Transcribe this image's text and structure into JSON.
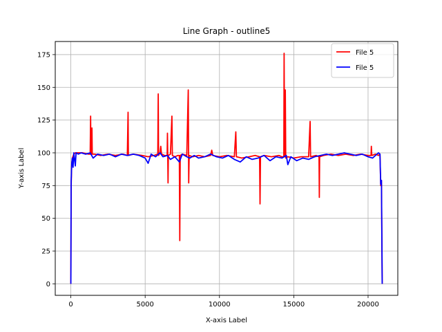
{
  "chart_data": {
    "type": "line",
    "title": "Line Graph - outline5",
    "xlabel": "X-axis Label",
    "ylabel": "Y-axis Label",
    "xlim": [
      -1050,
      22000
    ],
    "ylim": [
      -8.8,
      185
    ],
    "xticks": [
      0,
      5000,
      10000,
      15000,
      20000
    ],
    "yticks": [
      0,
      25,
      50,
      75,
      100,
      125,
      150,
      175
    ],
    "grid": true,
    "legend_position": "top-right",
    "series": [
      {
        "name": "File 5",
        "color": "#ff0000",
        "points": [
          [
            0,
            0
          ],
          [
            20,
            75
          ],
          [
            60,
            92
          ],
          [
            100,
            96
          ],
          [
            200,
            99
          ],
          [
            300,
            100
          ],
          [
            500,
            100
          ],
          [
            800,
            100
          ],
          [
            1200,
            99
          ],
          [
            1300,
            99
          ],
          [
            1330,
            128
          ],
          [
            1350,
            99
          ],
          [
            1400,
            99
          ],
          [
            1420,
            119
          ],
          [
            1440,
            99
          ],
          [
            1600,
            99
          ],
          [
            2000,
            98
          ],
          [
            2500,
            99
          ],
          [
            3000,
            98
          ],
          [
            3500,
            99
          ],
          [
            3800,
            98
          ],
          [
            3850,
            131
          ],
          [
            3870,
            98
          ],
          [
            4200,
            99
          ],
          [
            4800,
            98
          ],
          [
            5200,
            97
          ],
          [
            5600,
            98
          ],
          [
            5850,
            99
          ],
          [
            5880,
            145
          ],
          [
            5900,
            98
          ],
          [
            6000,
            100
          ],
          [
            6050,
            105
          ],
          [
            6100,
            99
          ],
          [
            6300,
            98
          ],
          [
            6480,
            98
          ],
          [
            6500,
            115
          ],
          [
            6520,
            98
          ],
          [
            6540,
            77
          ],
          [
            6560,
            98
          ],
          [
            6700,
            99
          ],
          [
            6800,
            128
          ],
          [
            6830,
            98
          ],
          [
            7000,
            97
          ],
          [
            7200,
            98
          ],
          [
            7300,
            98
          ],
          [
            7330,
            33
          ],
          [
            7360,
            98
          ],
          [
            7500,
            99
          ],
          [
            7800,
            98
          ],
          [
            7900,
            148
          ],
          [
            7930,
            77
          ],
          [
            7960,
            98
          ],
          [
            8200,
            97
          ],
          [
            8600,
            98
          ],
          [
            9000,
            97
          ],
          [
            9400,
            98
          ],
          [
            9480,
            102
          ],
          [
            9550,
            98
          ],
          [
            10000,
            97
          ],
          [
            10500,
            98
          ],
          [
            11000,
            97
          ],
          [
            11100,
            116
          ],
          [
            11140,
            97
          ],
          [
            11500,
            96
          ],
          [
            12000,
            97
          ],
          [
            12400,
            98
          ],
          [
            12700,
            97
          ],
          [
            12730,
            61
          ],
          [
            12760,
            97
          ],
          [
            13000,
            98
          ],
          [
            13500,
            97
          ],
          [
            14000,
            98
          ],
          [
            14200,
            97
          ],
          [
            14330,
            97
          ],
          [
            14350,
            176
          ],
          [
            14380,
            97
          ],
          [
            14400,
            97
          ],
          [
            14430,
            148
          ],
          [
            14460,
            96
          ],
          [
            14600,
            97
          ],
          [
            15000,
            96
          ],
          [
            15500,
            97
          ],
          [
            16000,
            97
          ],
          [
            16100,
            124
          ],
          [
            16130,
            97
          ],
          [
            16500,
            98
          ],
          [
            16700,
            97
          ],
          [
            16720,
            66
          ],
          [
            16740,
            97
          ],
          [
            17000,
            98
          ],
          [
            17500,
            99
          ],
          [
            18000,
            98
          ],
          [
            18500,
            99
          ],
          [
            19000,
            98
          ],
          [
            19500,
            99
          ],
          [
            20000,
            98
          ],
          [
            20200,
            98
          ],
          [
            20220,
            105
          ],
          [
            20250,
            98
          ],
          [
            20500,
            99
          ],
          [
            20700,
            98
          ],
          [
            20800,
            99
          ],
          [
            20850,
            75
          ],
          [
            20900,
            79
          ],
          [
            20950,
            0
          ]
        ]
      },
      {
        "name": "File 5",
        "color": "#0000ff",
        "points": [
          [
            0,
            0
          ],
          [
            20,
            78
          ],
          [
            60,
            92
          ],
          [
            100,
            96
          ],
          [
            150,
            89
          ],
          [
            200,
            100
          ],
          [
            300,
            90
          ],
          [
            350,
            100
          ],
          [
            500,
            99
          ],
          [
            700,
            100
          ],
          [
            1000,
            99
          ],
          [
            1300,
            100
          ],
          [
            1500,
            96
          ],
          [
            1800,
            99
          ],
          [
            2200,
            98
          ],
          [
            2600,
            99
          ],
          [
            3000,
            97
          ],
          [
            3400,
            99
          ],
          [
            3800,
            98
          ],
          [
            4200,
            99
          ],
          [
            4600,
            98
          ],
          [
            5000,
            96
          ],
          [
            5200,
            92
          ],
          [
            5400,
            99
          ],
          [
            5700,
            97
          ],
          [
            5900,
            99
          ],
          [
            6000,
            100
          ],
          [
            6200,
            97
          ],
          [
            6500,
            98
          ],
          [
            6700,
            95
          ],
          [
            7000,
            97
          ],
          [
            7300,
            93
          ],
          [
            7500,
            99
          ],
          [
            7800,
            97
          ],
          [
            8000,
            96
          ],
          [
            8300,
            98
          ],
          [
            8600,
            96
          ],
          [
            9000,
            97
          ],
          [
            9400,
            99
          ],
          [
            9800,
            97
          ],
          [
            10200,
            96
          ],
          [
            10600,
            98
          ],
          [
            11000,
            95
          ],
          [
            11400,
            93
          ],
          [
            11800,
            97
          ],
          [
            12200,
            95
          ],
          [
            12600,
            96
          ],
          [
            13000,
            98
          ],
          [
            13400,
            94
          ],
          [
            13800,
            97
          ],
          [
            14200,
            96
          ],
          [
            14500,
            98
          ],
          [
            14600,
            91
          ],
          [
            14800,
            97
          ],
          [
            15200,
            94
          ],
          [
            15600,
            96
          ],
          [
            16000,
            95
          ],
          [
            16400,
            97
          ],
          [
            16800,
            98
          ],
          [
            17200,
            99
          ],
          [
            17600,
            98
          ],
          [
            18000,
            99
          ],
          [
            18400,
            100
          ],
          [
            18800,
            99
          ],
          [
            19200,
            98
          ],
          [
            19600,
            99
          ],
          [
            20000,
            97
          ],
          [
            20300,
            96
          ],
          [
            20500,
            98
          ],
          [
            20700,
            100
          ],
          [
            20800,
            99
          ],
          [
            20850,
            76
          ],
          [
            20900,
            79
          ],
          [
            20950,
            0
          ]
        ]
      }
    ]
  }
}
